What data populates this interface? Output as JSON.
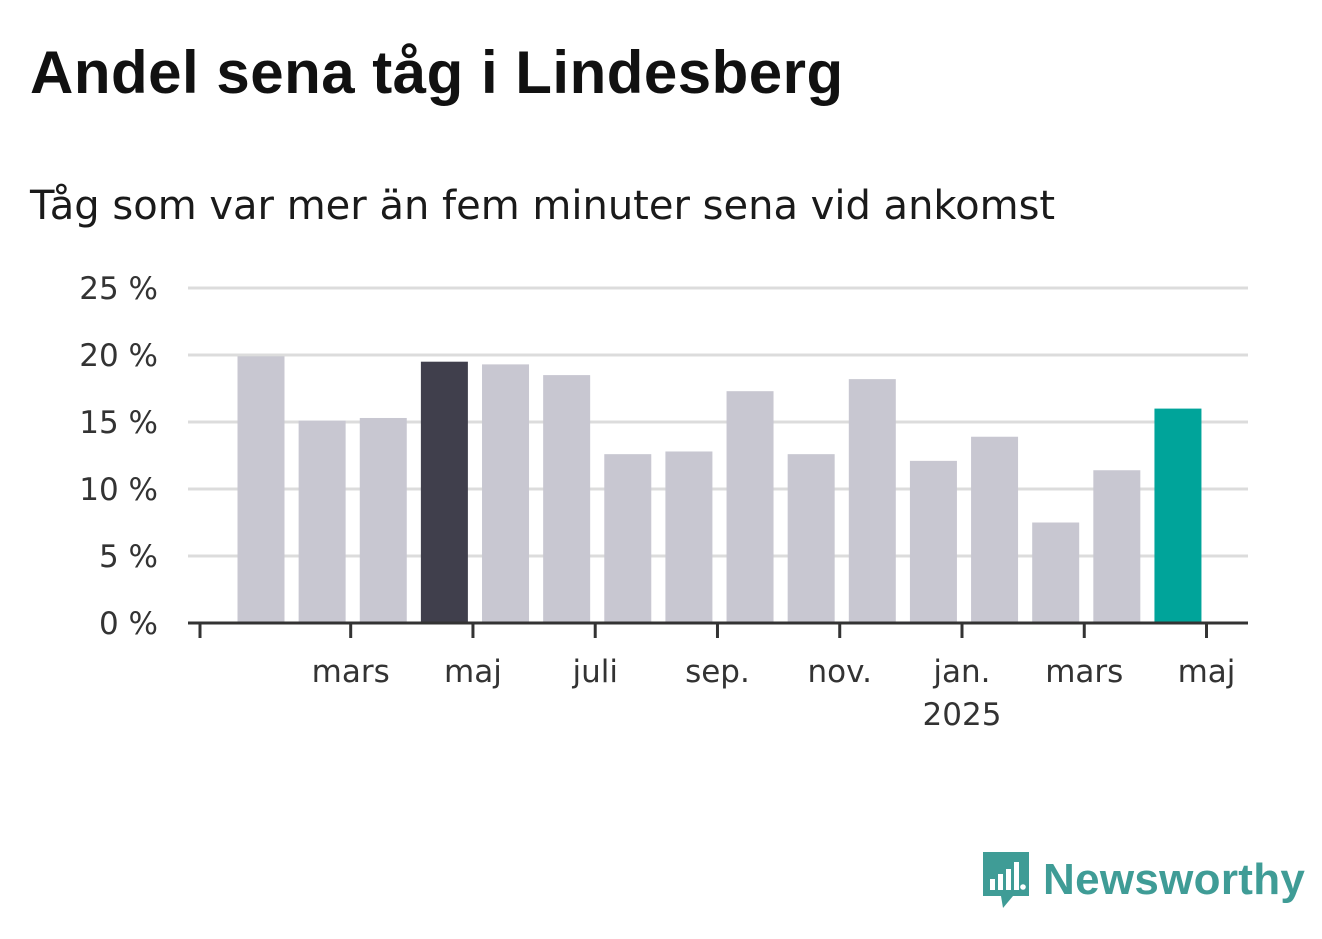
{
  "title": "Andel sena tåg i Lindesberg",
  "subtitle": "Tåg som var mer än fem minuter sena vid ankomst",
  "logo": {
    "text": "Newsworthy",
    "icon": "bar-chart-speech-bubble-icon",
    "color": "#3f9c96"
  },
  "chart_data": {
    "type": "bar",
    "title": "Andel sena tåg i Lindesberg",
    "subtitle": "Tåg som var mer än fem minuter sena vid ankomst",
    "xlabel": "",
    "ylabel": "",
    "unit": "%",
    "ylim": [
      0,
      25
    ],
    "yticks": [
      0,
      5,
      10,
      15,
      20,
      25
    ],
    "ytick_labels": [
      "0 %",
      "5 %",
      "10 %",
      "15 %",
      "20 %",
      "25 %"
    ],
    "grid": true,
    "legend": false,
    "categories": [
      "2024-02",
      "2024-03",
      "2024-04",
      "2024-05",
      "2024-06",
      "2024-07",
      "2024-08",
      "2024-09",
      "2024-10",
      "2024-11",
      "2024-12",
      "2025-01",
      "2025-02",
      "2025-03",
      "2025-04",
      "2025-05"
    ],
    "values": [
      19.9,
      15.1,
      15.3,
      19.5,
      19.3,
      18.5,
      12.6,
      12.8,
      17.3,
      12.6,
      18.2,
      12.1,
      13.9,
      7.5,
      11.4,
      16.0
    ],
    "xtick_labels": [
      {
        "index": 1,
        "label": "mars",
        "sublabel": ""
      },
      {
        "index": 3,
        "label": "maj",
        "sublabel": ""
      },
      {
        "index": 5,
        "label": "juli",
        "sublabel": ""
      },
      {
        "index": 7,
        "label": "sep.",
        "sublabel": ""
      },
      {
        "index": 9,
        "label": "nov.",
        "sublabel": ""
      },
      {
        "index": 11,
        "label": "jan.",
        "sublabel": "2025"
      },
      {
        "index": 13,
        "label": "mars",
        "sublabel": ""
      },
      {
        "index": 15,
        "label": "maj",
        "sublabel": ""
      }
    ],
    "colors": {
      "default": "#c8c7d1",
      "highlight_dark": "#403f4c",
      "highlight_latest": "#00a49a",
      "grid": "#dcdcdc",
      "axis": "#333333"
    },
    "highlight": {
      "3": "highlight_dark",
      "15": "highlight_latest"
    }
  }
}
